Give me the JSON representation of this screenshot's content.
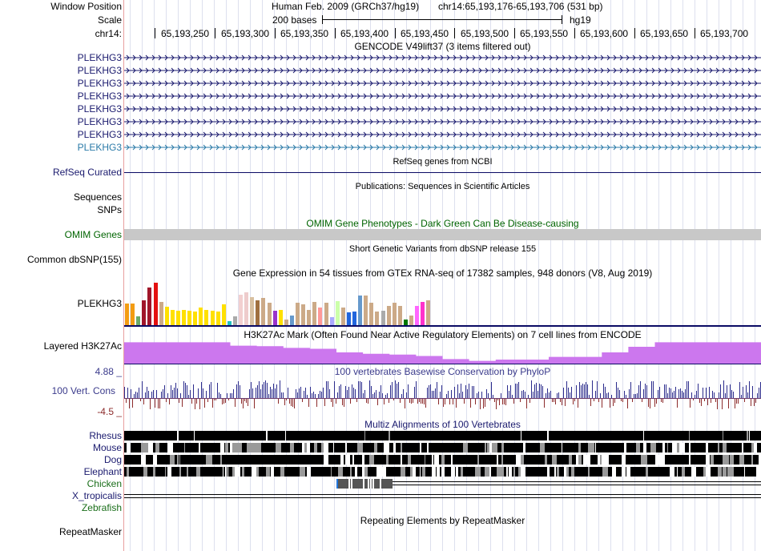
{
  "labels": {
    "window_position": "Window Position",
    "scale": "Scale",
    "chrom": "chr14:",
    "gencode_genes": [
      "PLEKHG3",
      "PLEKHG3",
      "PLEKHG3",
      "PLEKHG3",
      "PLEKHG3",
      "PLEKHG3",
      "PLEKHG3",
      "PLEKHG3"
    ],
    "refseq": "RefSeq Curated",
    "sequences": "Sequences",
    "snps": "SNPs",
    "omim": "OMIM Genes",
    "dbsnp": "Common dbSNP(155)",
    "gtex_gene": "PLEKHG3",
    "h3k27ac": "Layered H3K27Ac",
    "cons_max": "4.88 _",
    "cons": "100 Vert. Cons",
    "cons_min": "-4.5 _",
    "species": [
      "Rhesus",
      "Mouse",
      "Dog",
      "Elephant",
      "Chicken",
      "X_tropicalis",
      "Zebrafish"
    ],
    "repeatmasker": "RepeatMasker"
  },
  "header": {
    "assembly": "Human Feb. 2009 (GRCh37/hg19)",
    "position": "chr14:65,193,176-65,193,706 (531 bp)",
    "scale_text": "200 bases",
    "scale_db": "hg19",
    "ruler": [
      "65,193,250",
      "65,193,300",
      "65,193,350",
      "65,193,400",
      "65,193,450",
      "65,193,500",
      "65,193,550",
      "65,193,600",
      "65,193,650",
      "65,193,700"
    ]
  },
  "titles": {
    "gencode": "GENCODE V49lift37 (3 items filtered out)",
    "refseq": "RefSeq genes from NCBI",
    "publications": "Publications: Sequences in Scientific Articles",
    "omim": "OMIM Gene Phenotypes - Dark Green Can Be Disease-causing",
    "dbsnp": "Short Genetic Variants from dbSNP release 155",
    "gtex": "Gene Expression in 54 tissues from GTEx RNA-seq of 17382 samples, 948 donors (V8, Aug 2019)",
    "h3k27ac": "H3K27Ac Mark (Often Found Near Active Regulatory Elements) on 7 cell lines from ENCODE",
    "cons": "100 vertebrates Basewise Conservation by PhyloP",
    "multiz": "Multiz Alignments of 100 Vertebrates",
    "repeatmasker": "Repeating Elements by RepeatMasker"
  },
  "colors": {
    "navy": "#0a0a64",
    "gene": "#1a1a6e",
    "gene_light": "#2a7aa8",
    "omim_green": "#006400",
    "omim_bar": "#c8c8c8",
    "h3k27ac": "#cc77ee",
    "cons_pos": "#2b2b8c",
    "cons_neg": "#8c2b2b",
    "cons_label": "#3b3b8c"
  },
  "gtex_values": [
    0.45,
    0.45,
    0.18,
    0.52,
    0.78,
    0.88,
    0.48,
    0.38,
    0.32,
    0.3,
    0.32,
    0.3,
    0.28,
    0.36,
    0.32,
    0.3,
    0.28,
    0.44,
    0.08,
    0.18,
    0.64,
    0.68,
    0.58,
    0.52,
    0.56,
    0.46,
    0.3,
    0.32,
    0.12,
    0.2,
    0.46,
    0.44,
    0.32,
    0.48,
    0.36,
    0.46,
    0.16,
    0.5,
    0.36,
    0.26,
    0.28,
    0.62,
    0.62,
    0.46,
    0.28,
    0.3,
    0.4,
    0.46,
    0.4,
    0.12,
    0.2,
    0.4,
    0.48,
    0.52
  ],
  "gtex_colors": [
    "#f39c12",
    "#f39c12",
    "#6aaa6a",
    "#a0152a",
    "#a0152a",
    "#e41010",
    "#ccaa88",
    "#ffe000",
    "#ffe000",
    "#ffe000",
    "#ffe000",
    "#ffe000",
    "#ffe000",
    "#ffe000",
    "#ffe000",
    "#ffe000",
    "#ffe000",
    "#ffe000",
    "#20c0c0",
    "#aaaaaa",
    "#f2d0d0",
    "#eecccc",
    "#d8c0a0",
    "#a07040",
    "#ccaa88",
    "#ccaa88",
    "#9933cc",
    "#ffe000",
    "#ccaa88",
    "#6699cc",
    "#ccaa88",
    "#ccaa88",
    "#ccaa88",
    "#ccaa88",
    "#ff9999",
    "#ccaa88",
    "#aaaaff",
    "#ccffaa",
    "#ccaa88",
    "#2266dd",
    "#2266dd",
    "#6699cc",
    "#ccaa88",
    "#ccaa88",
    "#ccaa88",
    "#aaaaaa",
    "#ccaa88",
    "#ccaa88",
    "#ccaa88",
    "#007700",
    "#ccaa88",
    "#ff66ff",
    "#ff33cc",
    "#ccaa88"
  ],
  "h3k27ac_levels": [
    0.95,
    0.95,
    0.95,
    0.95,
    0.8,
    0.78,
    0.7,
    0.66,
    0.5,
    0.44,
    0.4,
    0.34,
    0.2,
    0.12,
    0.18,
    0.18,
    0.3,
    0.3,
    0.5,
    0.75,
    0.95,
    0.95,
    0.95,
    0.95
  ]
}
